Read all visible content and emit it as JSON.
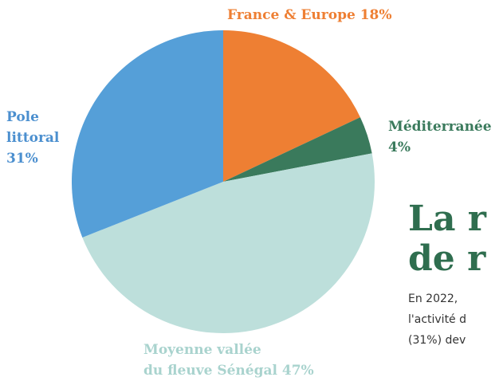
{
  "chart_data": {
    "type": "pie",
    "categories": [
      "France & Europe",
      "Méditerranée",
      "Moyenne vallée\ndu fleuve Sénégal",
      "Pole littoral"
    ],
    "values": [
      18,
      4,
      47,
      31
    ],
    "value_labels": [
      "18%",
      "4%",
      "47%",
      "31%"
    ],
    "colors": [
      "#ee7f33",
      "#3a7a5c",
      "#bddfdb",
      "#559fd8"
    ]
  },
  "text_panel": {
    "heading": [
      "La r",
      "de r"
    ],
    "body": [
      "En 2022,",
      "l'activité d",
      "(31%) dev"
    ]
  }
}
